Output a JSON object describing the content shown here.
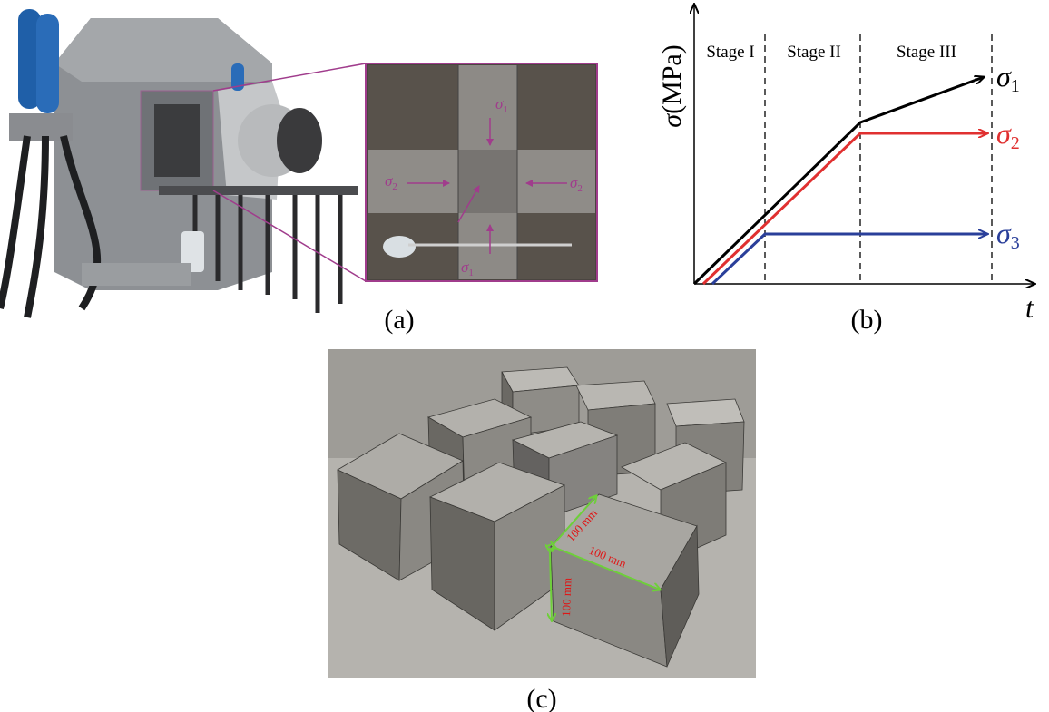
{
  "panel_a": {
    "label": "(a)",
    "inset_labels": [
      {
        "symbol": "σ",
        "subscript": "1"
      },
      {
        "symbol": "σ",
        "subscript": "2"
      },
      {
        "symbol": "σ",
        "subscript": "2"
      },
      {
        "symbol": "σ",
        "subscript": "1"
      }
    ]
  },
  "panel_b": {
    "label": "(b)",
    "y_axis": {
      "symbol": "σ",
      "unit": "(MPa)"
    },
    "x_axis": "t",
    "stages": [
      "Stage I",
      "Stage II",
      "Stage III"
    ],
    "curves": [
      {
        "symbol": "σ",
        "subscript": "1"
      },
      {
        "symbol": "σ",
        "subscript": "2"
      },
      {
        "symbol": "σ",
        "subscript": "3"
      }
    ]
  },
  "panel_c": {
    "label": "(c)",
    "dimensions": [
      "100 mm",
      "100 mm",
      "100 mm"
    ]
  }
}
